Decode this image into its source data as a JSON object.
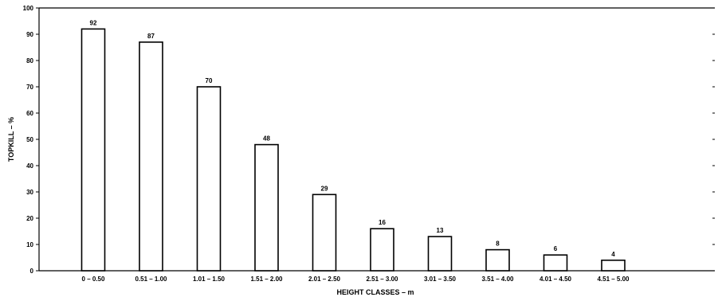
{
  "chart_data": {
    "type": "bar",
    "title": "",
    "xlabel": "HEIGHT CLASSES – m",
    "ylabel": "TOPKILL – %",
    "categories": [
      "0 – 0.50",
      "0.51 – 1.00",
      "1.01 – 1.50",
      "1.51 – 2.00",
      "2.01 – 2.50",
      "2.51 – 3.00",
      "3.01 – 3.50",
      "3.51 – 4.00",
      "4.01 – 4.50",
      "4.51 – 5.00"
    ],
    "values": [
      92,
      87,
      70,
      48,
      29,
      16,
      13,
      8,
      6,
      4
    ],
    "ylim": [
      0,
      100
    ],
    "yticks": [
      0,
      10,
      20,
      30,
      40,
      50,
      60,
      70,
      80,
      90,
      100
    ],
    "grid": false,
    "legend": "none",
    "bar_fill": "#ffffff",
    "bar_stroke": "#000000"
  }
}
